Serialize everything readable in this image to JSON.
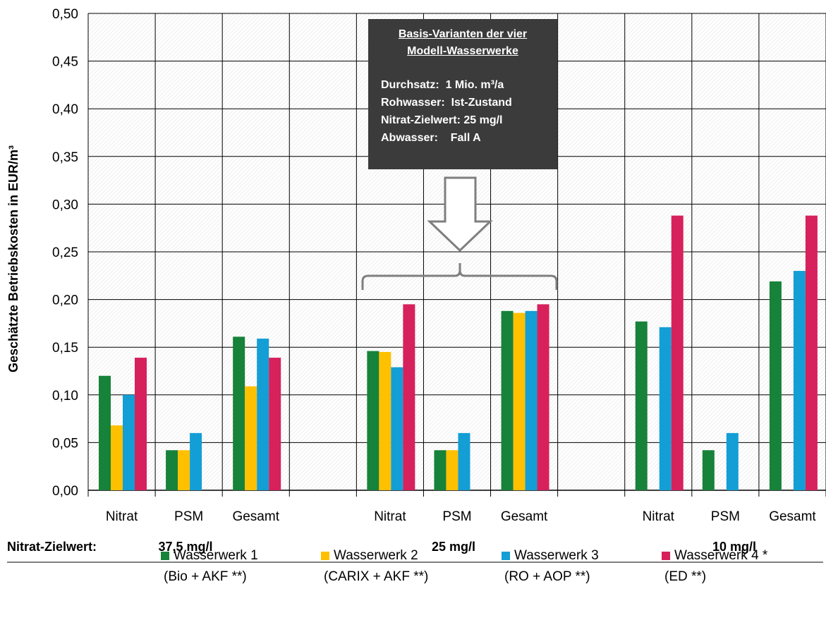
{
  "chart_data": {
    "type": "bar",
    "ylabel": "Geschätzte Betriebskosten in EUR/m³",
    "ylim": [
      0,
      0.5
    ],
    "yticks": [
      "0,00",
      "0,05",
      "0,10",
      "0,15",
      "0,20",
      "0,25",
      "0,30",
      "0,35",
      "0,40",
      "0,45",
      "0,50"
    ],
    "grid": true,
    "legend_position": "bottom",
    "groups": [
      {
        "target": "37,5 mg/l",
        "categories": [
          "Nitrat",
          "PSM",
          "Gesamt"
        ]
      },
      {
        "target": "25 mg/l",
        "categories": [
          "Nitrat",
          "PSM",
          "Gesamt"
        ]
      },
      {
        "target": "10 mg/l",
        "categories": [
          "Nitrat",
          "PSM",
          "Gesamt"
        ]
      }
    ],
    "series": [
      {
        "name": "Wasserwerk 1",
        "sub": "(Bio + AKF **)",
        "color": "#17823a",
        "values": [
          0.12,
          0.042,
          0.161,
          0.146,
          0.042,
          0.188,
          0.177,
          0.042,
          0.219
        ]
      },
      {
        "name": "Wasserwerk 2",
        "sub": "(CARIX + AKF **)",
        "color": "#ffc000",
        "values": [
          0.068,
          0.042,
          0.109,
          0.145,
          0.042,
          0.186,
          null,
          null,
          null
        ]
      },
      {
        "name": "Wasserwerk 3",
        "sub": "(RO + AOP **)",
        "color": "#139ed6",
        "values": [
          0.1,
          0.06,
          0.159,
          0.129,
          0.06,
          0.188,
          0.171,
          0.06,
          0.23
        ]
      },
      {
        "name": "Wasserwerk 4 *",
        "sub": "(ED **)",
        "color": "#d6215c",
        "values": [
          0.139,
          null,
          0.139,
          0.195,
          null,
          0.195,
          0.288,
          null,
          0.288
        ]
      }
    ],
    "target_label": "Nitrat-Zielwert:"
  },
  "infobox": {
    "title_line1": "Basis-Varianten der vier",
    "title_line2": "Modell-Wasserwerke",
    "lines": [
      "Durchsatz:  1 Mio. m³/a",
      "Rohwasser:  Ist-Zustand",
      "Nitrat-Zielwert: 25 mg/l",
      "Abwasser:    Fall A"
    ]
  }
}
